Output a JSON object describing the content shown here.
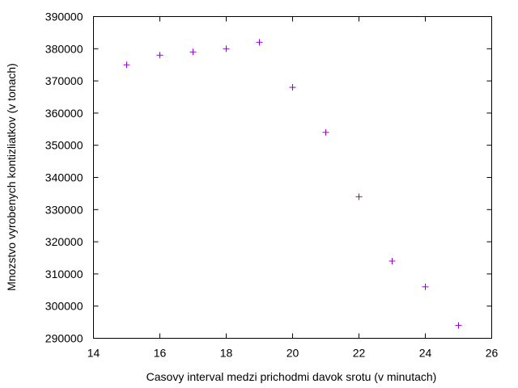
{
  "chart_data": {
    "type": "scatter",
    "title": "",
    "xlabel": "Casovy interval medzi prichodmi davok srotu (v minutach)",
    "ylabel": "Mnozstvo vyrobenych kontizliatkov (v tonach)",
    "xlim": [
      14,
      26
    ],
    "ylim": [
      290000,
      390000
    ],
    "xticks": [
      14,
      16,
      18,
      20,
      22,
      24,
      26
    ],
    "yticks": [
      290000,
      300000,
      310000,
      320000,
      330000,
      340000,
      350000,
      360000,
      370000,
      380000,
      390000
    ],
    "marker": "+",
    "grid": false,
    "colors": {
      "marker": "#9400d3",
      "axes": "#000000"
    },
    "series": [
      {
        "x": [
          15,
          16,
          17,
          18,
          19,
          20,
          21,
          22,
          23,
          24,
          25
        ],
        "y": [
          375000,
          378000,
          379000,
          380000,
          382000,
          368000,
          354000,
          334000,
          314000,
          306000,
          294000
        ]
      }
    ]
  }
}
